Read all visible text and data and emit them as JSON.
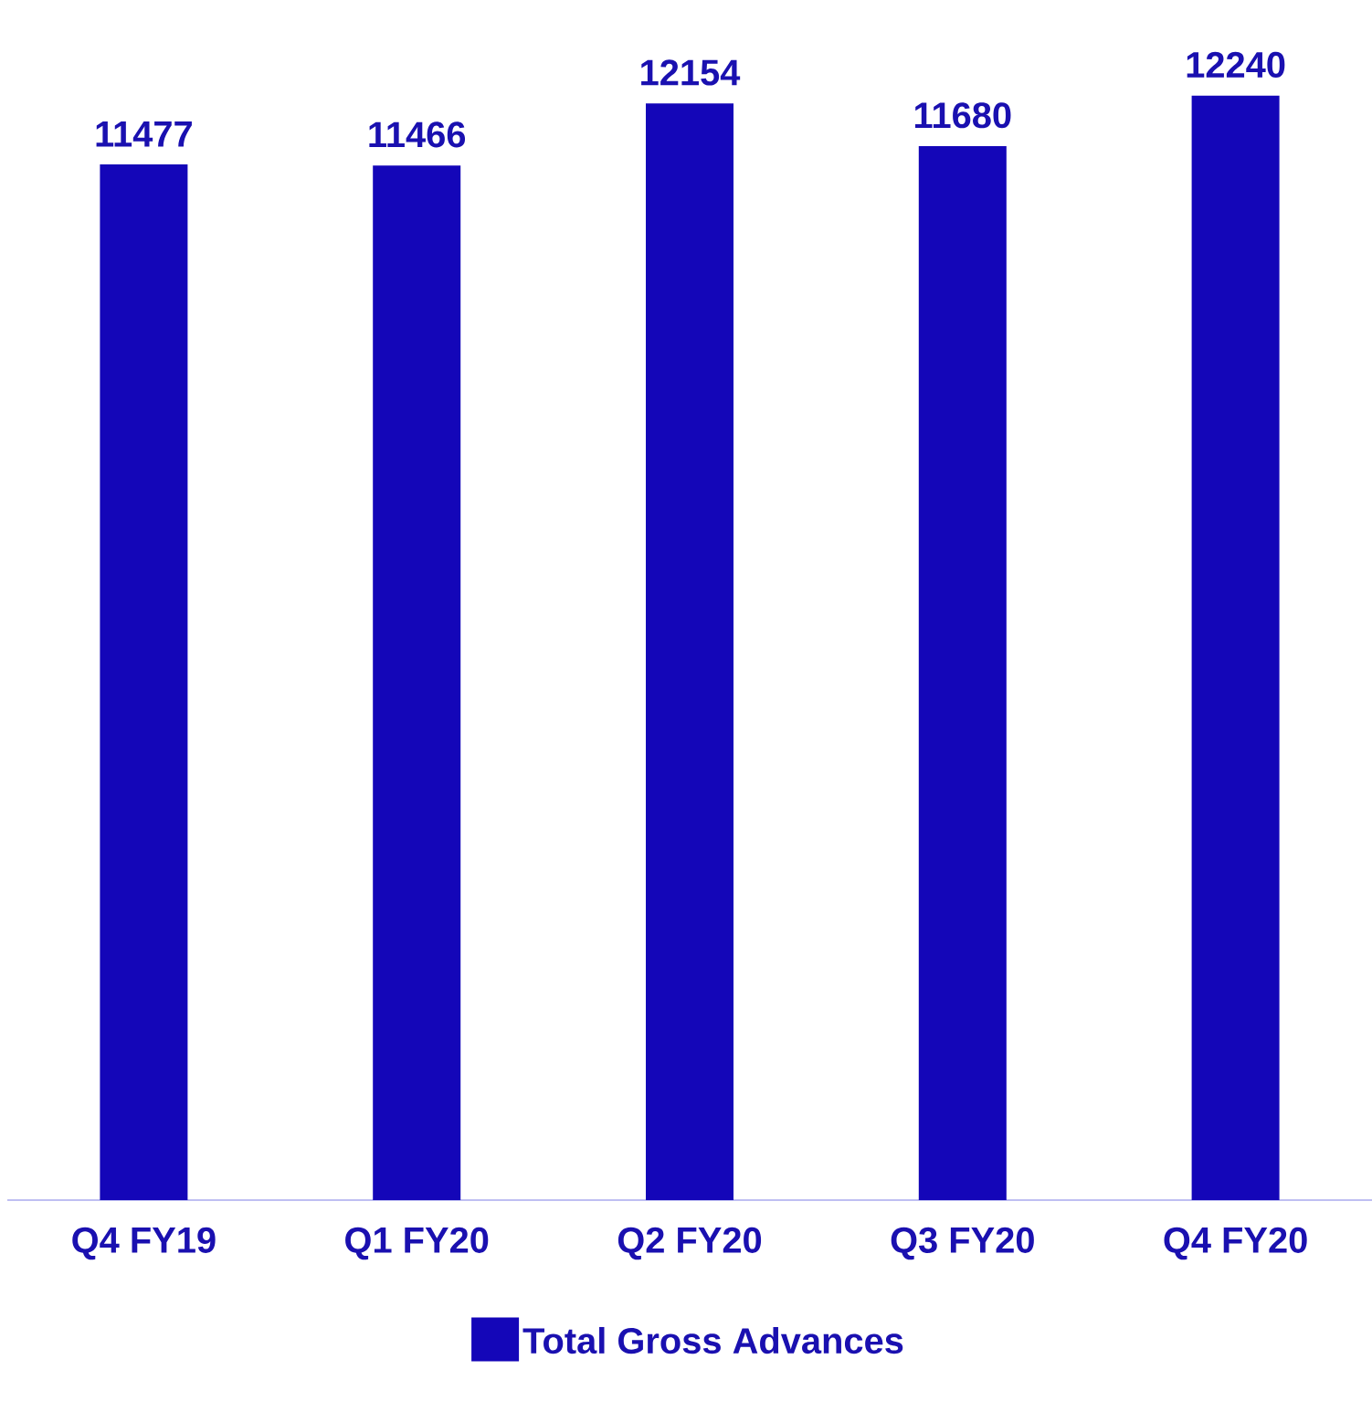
{
  "chart_data": {
    "type": "bar",
    "categories": [
      "Q4 FY19",
      "Q1 FY20",
      "Q2 FY20",
      "Q3 FY20",
      "Q4 FY20"
    ],
    "series": [
      {
        "name": "Total Gross Advances",
        "color": "#1406b8",
        "values": [
          11477,
          11466,
          12154,
          11680,
          12240
        ]
      }
    ],
    "data_labels": true,
    "tick_labels": "x",
    "legend": "bottom"
  }
}
